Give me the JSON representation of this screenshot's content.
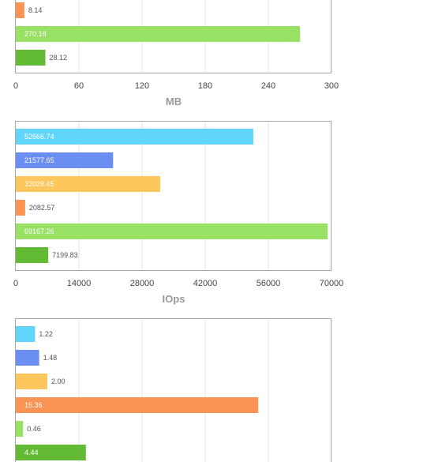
{
  "colors": {
    "grid": "#e4e4e4",
    "frame": "#a7a7a7"
  },
  "chart_data": [
    {
      "type": "bar",
      "orientation": "horizontal",
      "xlabel": "MB",
      "xlim": [
        0,
        300
      ],
      "xticks": [
        "0",
        "60",
        "120",
        "180",
        "240",
        "300"
      ],
      "grid": true,
      "bars": [
        {
          "value": 8.14,
          "label": "8.14",
          "color": "#f99454"
        },
        {
          "value": 270.18,
          "label": "270.18",
          "color": "#98e165"
        },
        {
          "value": 28.12,
          "label": "28.12",
          "color": "#63bb35"
        }
      ]
    },
    {
      "type": "bar",
      "orientation": "horizontal",
      "xlabel": "IOps",
      "xlim": [
        0,
        70000
      ],
      "xticks": [
        "0",
        "14000",
        "28000",
        "42000",
        "56000",
        "70000"
      ],
      "grid": true,
      "bars": [
        {
          "value": 52666.74,
          "label": "52666.74",
          "color": "#62d5fb"
        },
        {
          "value": 21577.65,
          "label": "21577.65",
          "color": "#6b8ef2"
        },
        {
          "value": 32028.45,
          "label": "32028.45",
          "color": "#fec75d"
        },
        {
          "value": 2082.57,
          "label": "2082.57",
          "color": "#f99454"
        },
        {
          "value": 69167.26,
          "label": "69167.26",
          "color": "#98e165"
        },
        {
          "value": 7199.83,
          "label": "7199.83",
          "color": "#63bb35"
        }
      ]
    },
    {
      "type": "bar",
      "orientation": "horizontal",
      "xlim": [
        0,
        20
      ],
      "grid": true,
      "bars": [
        {
          "value": 1.22,
          "label": "1.22",
          "color": "#62d5fb"
        },
        {
          "value": 1.48,
          "label": "1.48",
          "color": "#6b8ef2"
        },
        {
          "value": 2.0,
          "label": "2.00",
          "color": "#fec75d"
        },
        {
          "value": 15.36,
          "label": "15.36",
          "color": "#f99454"
        },
        {
          "value": 0.46,
          "label": "0.46",
          "color": "#98e165"
        },
        {
          "value": 4.44,
          "label": "4.44",
          "color": "#63bb35"
        }
      ]
    }
  ]
}
